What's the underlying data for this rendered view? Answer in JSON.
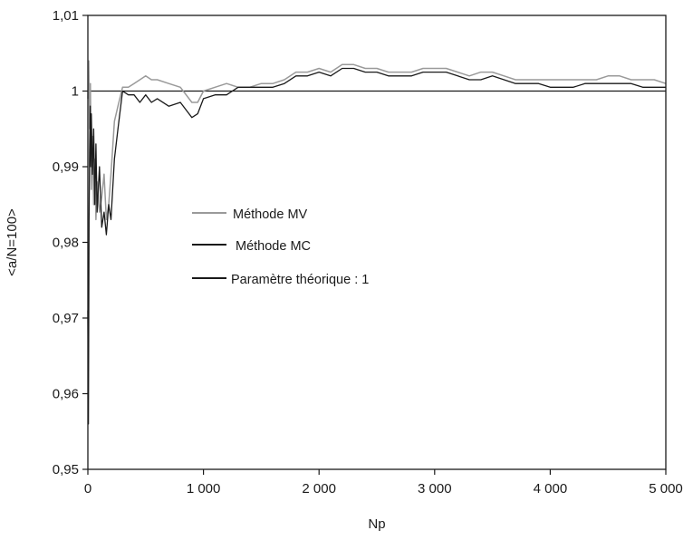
{
  "chart_data": {
    "type": "line",
    "xlabel": "Np",
    "ylabel": "<a/N=100>",
    "xlim": [
      0,
      5000
    ],
    "ylim": [
      0.95,
      1.01
    ],
    "x_ticks": [
      0,
      1000,
      2000,
      3000,
      4000,
      5000
    ],
    "x_tick_labels": [
      "0",
      "1 000",
      "2 000",
      "3 000",
      "4 000",
      "5 000"
    ],
    "y_ticks": [
      0.95,
      0.96,
      0.97,
      0.98,
      0.99,
      1.0,
      1.01
    ],
    "y_tick_labels": [
      "0,95",
      "0,96",
      "0,97",
      "0,98",
      "0,99",
      "1",
      "1,01"
    ],
    "grid": false,
    "legend_position": "center-left",
    "series": [
      {
        "name": "Méthode MV",
        "color": "#9a9a9a",
        "x": [
          0,
          8,
          15,
          22,
          30,
          40,
          50,
          60,
          70,
          80,
          100,
          120,
          140,
          160,
          180,
          200,
          230,
          260,
          300,
          350,
          400,
          450,
          500,
          550,
          600,
          700,
          800,
          900,
          950,
          1000,
          1100,
          1200,
          1300,
          1400,
          1500,
          1600,
          1700,
          1800,
          1900,
          2000,
          2100,
          2200,
          2300,
          2400,
          2500,
          2600,
          2700,
          2800,
          2900,
          3000,
          3100,
          3200,
          3300,
          3400,
          3500,
          3600,
          3700,
          3800,
          3900,
          4000,
          4100,
          4200,
          4300,
          4400,
          4500,
          4600,
          4700,
          4800,
          4900,
          5000
        ],
        "y": [
          0.999,
          1.004,
          0.995,
          1.001,
          0.987,
          0.994,
          0.985,
          0.991,
          0.983,
          0.988,
          0.984,
          0.986,
          0.989,
          0.983,
          0.985,
          0.989,
          0.996,
          0.998,
          1.0005,
          1.0005,
          1.001,
          1.0015,
          1.002,
          1.0015,
          1.0015,
          1.001,
          1.0005,
          0.9985,
          0.9985,
          1.0,
          1.0005,
          1.001,
          1.0005,
          1.0005,
          1.001,
          1.001,
          1.0015,
          1.0025,
          1.0025,
          1.003,
          1.0025,
          1.0035,
          1.0035,
          1.003,
          1.003,
          1.0025,
          1.0025,
          1.0025,
          1.003,
          1.003,
          1.003,
          1.0025,
          1.002,
          1.0025,
          1.0025,
          1.002,
          1.0015,
          1.0015,
          1.0015,
          1.0015,
          1.0015,
          1.0015,
          1.0015,
          1.0015,
          1.002,
          1.002,
          1.0015,
          1.0015,
          1.0015,
          1.001
        ]
      },
      {
        "name": "Méthode MC",
        "color": "#1a1a1a",
        "x": [
          0,
          5,
          10,
          15,
          20,
          25,
          30,
          40,
          50,
          60,
          70,
          80,
          100,
          120,
          140,
          160,
          180,
          200,
          230,
          260,
          300,
          350,
          400,
          450,
          500,
          550,
          600,
          700,
          800,
          900,
          950,
          1000,
          1100,
          1200,
          1300,
          1400,
          1500,
          1600,
          1700,
          1800,
          1900,
          2000,
          2100,
          2200,
          2300,
          2400,
          2500,
          2600,
          2700,
          2800,
          2900,
          3000,
          3100,
          3200,
          3300,
          3400,
          3500,
          3600,
          3700,
          3800,
          3900,
          4000,
          4100,
          4200,
          4300,
          4400,
          4500,
          4600,
          4700,
          4800,
          4900,
          5000
        ],
        "y": [
          0.971,
          0.956,
          0.983,
          0.992,
          0.998,
          0.99,
          0.997,
          0.989,
          0.995,
          0.985,
          0.993,
          0.984,
          0.99,
          0.982,
          0.984,
          0.981,
          0.985,
          0.983,
          0.991,
          0.995,
          1.0,
          0.9995,
          0.9995,
          0.9985,
          0.9995,
          0.9985,
          0.999,
          0.998,
          0.9985,
          0.9965,
          0.997,
          0.999,
          0.9995,
          0.9995,
          1.0005,
          1.0005,
          1.0005,
          1.0005,
          1.001,
          1.002,
          1.002,
          1.0025,
          1.002,
          1.003,
          1.003,
          1.0025,
          1.0025,
          1.002,
          1.002,
          1.002,
          1.0025,
          1.0025,
          1.0025,
          1.002,
          1.0015,
          1.0015,
          1.002,
          1.0015,
          1.001,
          1.001,
          1.001,
          1.0005,
          1.0005,
          1.0005,
          1.001,
          1.001,
          1.001,
          1.001,
          1.001,
          1.0005,
          1.0005,
          1.0005
        ]
      },
      {
        "name": "Paramètre théorique : 1",
        "color": "#1a1a1a",
        "x": [
          0,
          5000
        ],
        "y": [
          1,
          1
        ]
      }
    ]
  }
}
